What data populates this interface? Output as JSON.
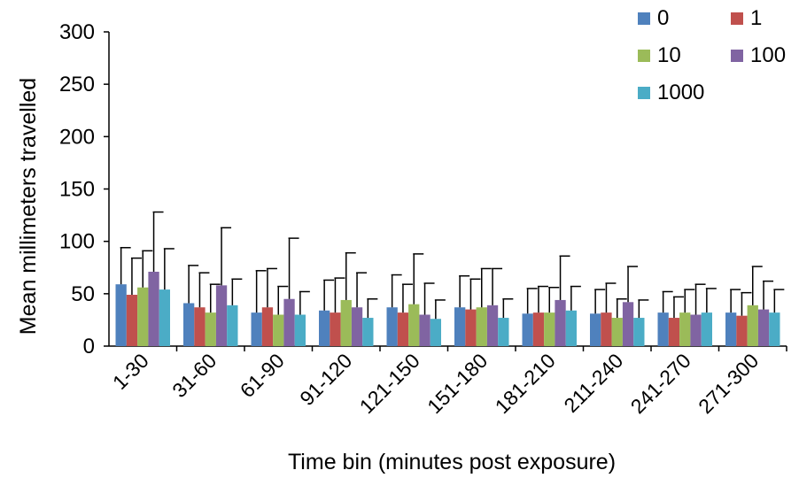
{
  "chart_data": {
    "type": "bar",
    "xlabel": "Time bin (minutes post exposure)",
    "ylabel": "Mean millimeters travelled",
    "ylim": [
      0,
      300
    ],
    "yticks": [
      0,
      50,
      100,
      150,
      200,
      250,
      300
    ],
    "grid": false,
    "legend_position": "top-right",
    "categories": [
      "1-30",
      "31-60",
      "61-90",
      "91-120",
      "121-150",
      "151-180",
      "181-210",
      "211-240",
      "241-270",
      "271-300"
    ],
    "series": [
      {
        "name": "0",
        "color": "#4f81bd",
        "values": [
          59,
          41,
          32,
          34,
          37,
          37,
          31,
          31,
          32,
          32
        ],
        "error": [
          35,
          36,
          40,
          29,
          31,
          30,
          24,
          23,
          20,
          22
        ]
      },
      {
        "name": "1",
        "color": "#c0504d",
        "values": [
          49,
          37,
          37,
          32,
          32,
          35,
          32,
          32,
          27,
          29
        ],
        "error": [
          35,
          33,
          37,
          33,
          27,
          29,
          25,
          28,
          20,
          22
        ]
      },
      {
        "name": "10",
        "color": "#9bbb59",
        "values": [
          56,
          32,
          30,
          44,
          40,
          37,
          32,
          27,
          32,
          39
        ],
        "error": [
          35,
          27,
          27,
          45,
          48,
          37,
          24,
          18,
          22,
          37
        ]
      },
      {
        "name": "100",
        "color": "#8064a2",
        "values": [
          71,
          58,
          45,
          37,
          30,
          39,
          44,
          42,
          30,
          35
        ],
        "error": [
          57,
          55,
          58,
          33,
          30,
          35,
          42,
          34,
          29,
          27
        ]
      },
      {
        "name": "1000",
        "color": "#4bacc6",
        "values": [
          54,
          39,
          30,
          27,
          26,
          27,
          34,
          27,
          32,
          32
        ],
        "error": [
          39,
          25,
          22,
          18,
          18,
          18,
          23,
          17,
          23,
          22
        ]
      }
    ]
  }
}
